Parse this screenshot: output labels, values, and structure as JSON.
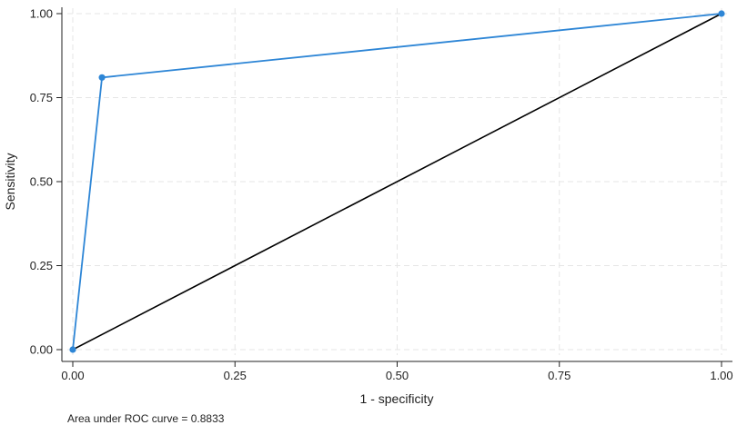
{
  "chart_data": {
    "type": "line",
    "xlabel": "1 - specificity",
    "ylabel": "Sensitivity",
    "xlim": [
      0,
      1
    ],
    "ylim": [
      0,
      1
    ],
    "x_ticks": [
      "0.00",
      "0.25",
      "0.50",
      "0.75",
      "1.00"
    ],
    "y_ticks": [
      "0.00",
      "0.25",
      "0.50",
      "0.75",
      "1.00"
    ],
    "grid": true,
    "series": [
      {
        "points": [
          {
            "x": 0,
            "y": 0
          },
          {
            "x": 0.045,
            "y": 0.81
          },
          {
            "x": 1,
            "y": 1
          }
        ],
        "color": "#2e86d6",
        "markers": true
      },
      {
        "points": [
          {
            "x": 0,
            "y": 0
          },
          {
            "x": 1,
            "y": 1
          }
        ],
        "color": "#000000",
        "markers": false
      }
    ],
    "note": "Area under ROC curve = 0.8833"
  }
}
